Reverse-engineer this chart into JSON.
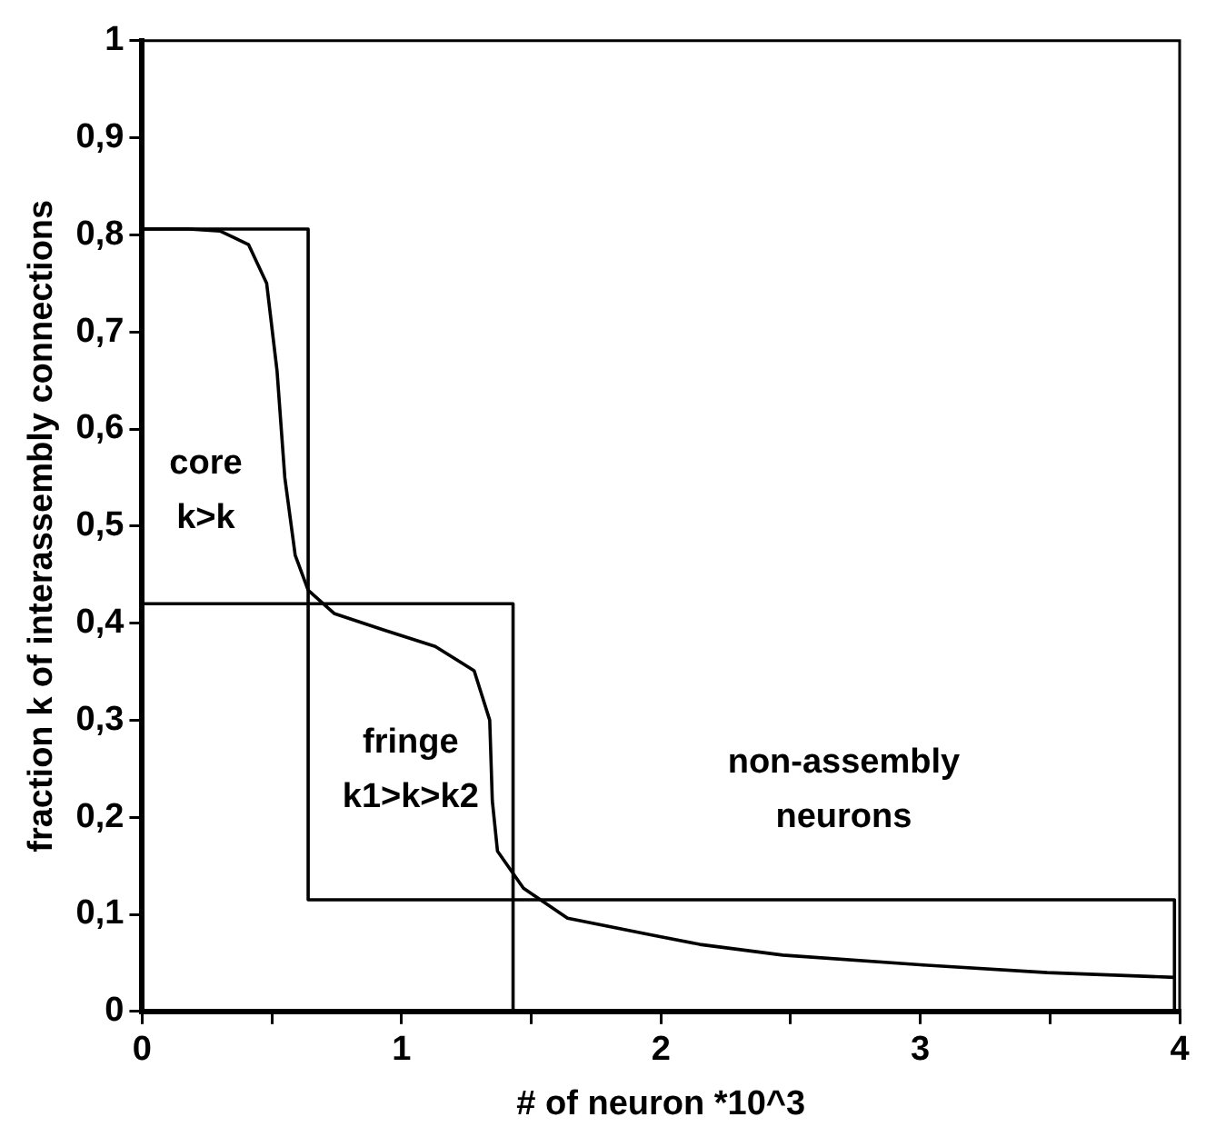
{
  "chart_data": {
    "type": "line",
    "xlabel": "# of neuron *10^3",
    "ylabel": "fraction k of interassembly connections",
    "xlim": [
      0,
      4
    ],
    "xticks": [
      0,
      {
        "value": 0.5,
        "label": null
      },
      1,
      {
        "value": 1.5,
        "label": null
      },
      2,
      {
        "value": 2.5,
        "label": null
      },
      3,
      {
        "value": 3.5,
        "label": null
      },
      4
    ],
    "ylim": [
      0,
      1
    ],
    "yticks": [
      0,
      {
        "value": 0.1,
        "label": "0,1"
      },
      {
        "value": 0.2,
        "label": "0,2"
      },
      {
        "value": 0.3,
        "label": "0,3"
      },
      {
        "value": 0.4,
        "label": "0,4"
      },
      {
        "value": 0.5,
        "label": "0,5"
      },
      {
        "value": 0.6,
        "label": "0,6"
      },
      {
        "value": 0.7,
        "label": "0,7"
      },
      {
        "value": 0.8,
        "label": "0,8"
      },
      {
        "value": 0.9,
        "label": "0,9"
      },
      1
    ],
    "grid": false,
    "legend": false,
    "marker": "none",
    "line_style": "solid",
    "series": [
      {
        "color": "#000000",
        "x": [
          0,
          0.18,
          0.3,
          0.41,
          0.48,
          0.52,
          0.55,
          0.59,
          0.64,
          0.74,
          0.93,
          1.13,
          1.28,
          1.34,
          1.35,
          1.37,
          1.47,
          1.64,
          1.96,
          2.15,
          2.47,
          3.0,
          3.49,
          3.98
        ],
        "values": [
          0.806,
          0.806,
          0.804,
          0.79,
          0.75,
          0.66,
          0.55,
          0.47,
          0.434,
          0.41,
          0.393,
          0.376,
          0.351,
          0.3,
          0.217,
          0.165,
          0.127,
          0.096,
          0.079,
          0.069,
          0.058,
          0.048,
          0.04,
          0.035
        ]
      },
      {
        "type": "step",
        "color": "#000000",
        "x": [
          0,
          0.64,
          1.43,
          3.98
        ],
        "values": [
          0.806,
          0.42,
          0.115,
          0
        ]
      },
      {
        "type": "step",
        "color": "#000000",
        "x": [
          0,
          0.64,
          1.43,
          3.98
        ],
        "values": [
          0.42,
          0.115,
          0,
          0
        ]
      }
    ],
    "annotations": [
      "core k>k",
      "fringe k1>k>k2",
      "non-assembly neurons"
    ]
  }
}
